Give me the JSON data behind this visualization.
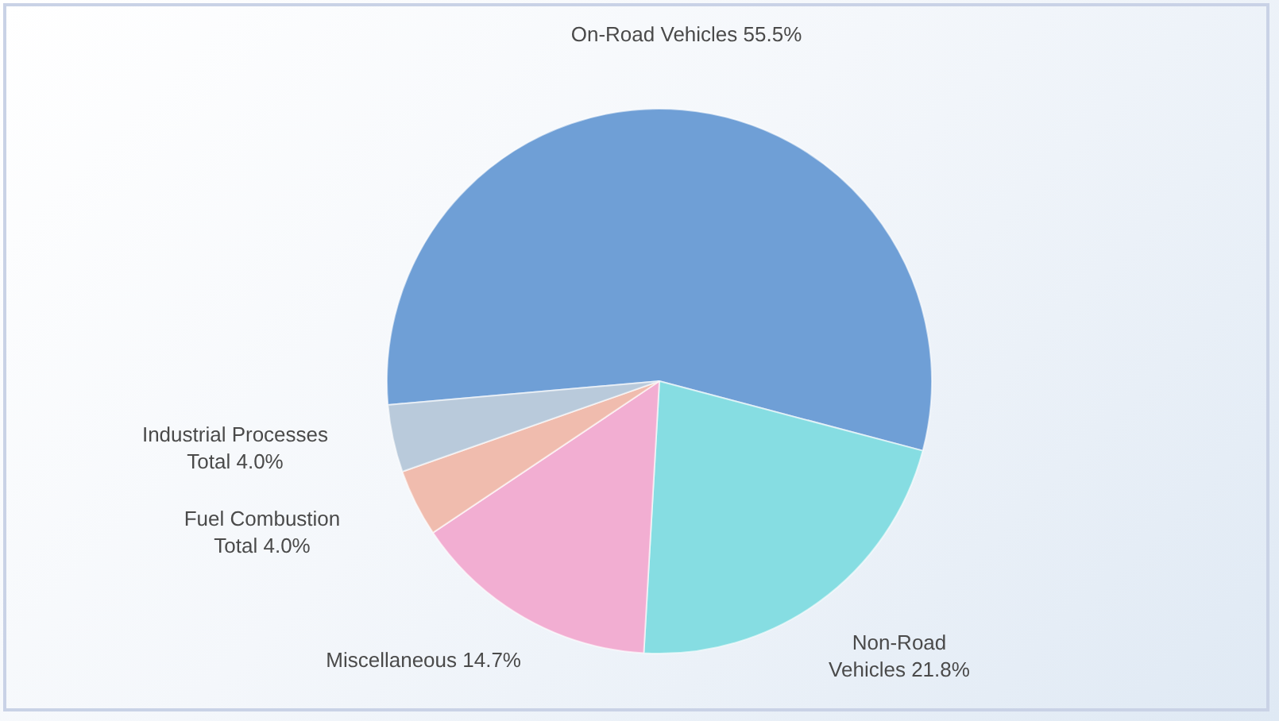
{
  "chart_data": {
    "type": "pie",
    "categories": [
      "On-Road Vehicles",
      "Non-Road Vehicles",
      "Miscellaneous",
      "Fuel Combustion Total",
      "Industrial Processes Total"
    ],
    "values": [
      55.5,
      21.8,
      14.7,
      4.0,
      4.0
    ],
    "value_labels": [
      "55.5%",
      "21.8%",
      "14.7%",
      "4.0%",
      "4.0%"
    ],
    "colors": [
      "#6f9fd6",
      "#86dde2",
      "#f2aed2",
      "#f0bcae",
      "#b9cadb"
    ],
    "legend": false
  }
}
